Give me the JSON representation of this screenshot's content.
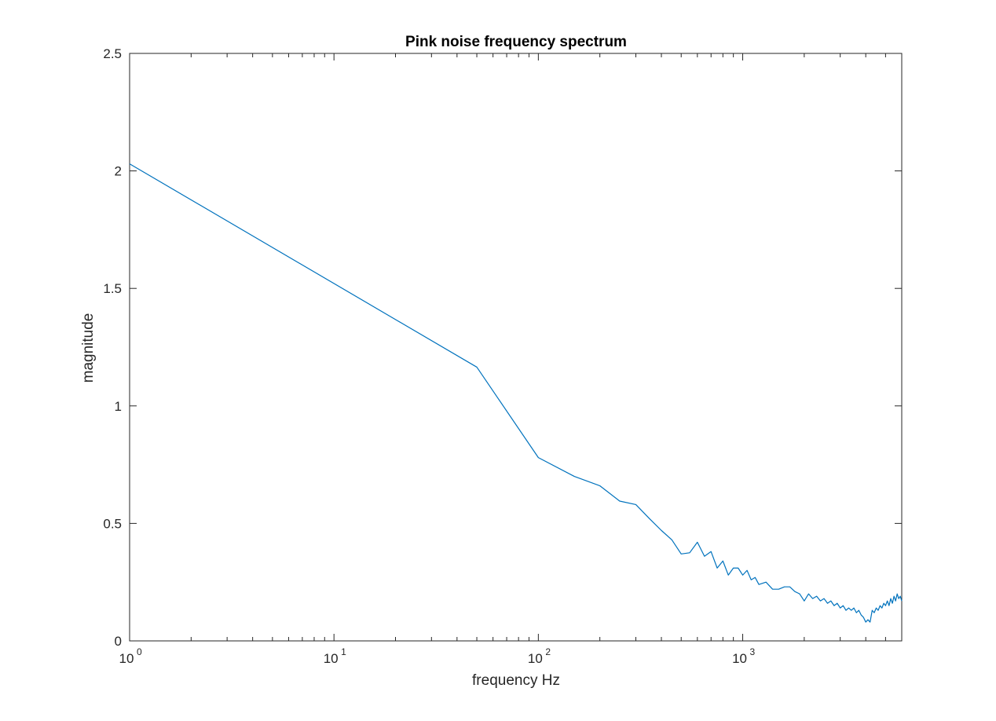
{
  "chart_data": {
    "type": "line",
    "title": "Pink noise frequency spectrum",
    "xlabel": "frequency Hz",
    "ylabel": "magnitude",
    "xscale": "log",
    "xlim": [
      1,
      6000
    ],
    "ylim": [
      0,
      2.5
    ],
    "xticks": [
      {
        "base": "10",
        "exp": "0",
        "value": 1
      },
      {
        "base": "10",
        "exp": "1",
        "value": 10
      },
      {
        "base": "10",
        "exp": "2",
        "value": 100
      },
      {
        "base": "10",
        "exp": "3",
        "value": 1000
      }
    ],
    "yticks": [
      {
        "label": "0",
        "value": 0
      },
      {
        "label": "0.5",
        "value": 0.5
      },
      {
        "label": "1",
        "value": 1
      },
      {
        "label": "1.5",
        "value": 1.5
      },
      {
        "label": "2",
        "value": 2
      },
      {
        "label": "2.5",
        "value": 2.5
      }
    ],
    "grid": false,
    "box": true,
    "series_color": "#0072bd",
    "series": [
      {
        "x": [
          1,
          50,
          100,
          150,
          200,
          250,
          300,
          350,
          400,
          450,
          500,
          550,
          600,
          650,
          700,
          750,
          800,
          850,
          900,
          950,
          1000,
          1050,
          1100,
          1150,
          1200,
          1300,
          1400,
          1500,
          1600,
          1700,
          1800,
          1900,
          2000,
          2100,
          2200,
          2300,
          2400,
          2500,
          2600,
          2700,
          2800,
          2900,
          3000,
          3100,
          3200,
          3300,
          3400,
          3500,
          3600,
          3700,
          3800,
          3900,
          4000,
          4100,
          4200,
          4300,
          4400,
          4500,
          4600,
          4700,
          4800,
          4900,
          5000,
          5100,
          5200,
          5300,
          5400,
          5500,
          5600,
          5700,
          5800,
          5900,
          6000
        ],
        "y": [
          2.03,
          1.165,
          0.78,
          0.7,
          0.66,
          0.595,
          0.58,
          0.52,
          0.47,
          0.43,
          0.37,
          0.375,
          0.42,
          0.36,
          0.38,
          0.31,
          0.34,
          0.28,
          0.31,
          0.31,
          0.28,
          0.3,
          0.26,
          0.27,
          0.24,
          0.25,
          0.22,
          0.22,
          0.23,
          0.23,
          0.21,
          0.2,
          0.17,
          0.2,
          0.18,
          0.19,
          0.17,
          0.18,
          0.16,
          0.17,
          0.15,
          0.16,
          0.14,
          0.15,
          0.13,
          0.14,
          0.13,
          0.14,
          0.12,
          0.13,
          0.11,
          0.1,
          0.08,
          0.09,
          0.08,
          0.13,
          0.12,
          0.14,
          0.13,
          0.15,
          0.14,
          0.16,
          0.15,
          0.17,
          0.15,
          0.18,
          0.16,
          0.19,
          0.17,
          0.2,
          0.18,
          0.19,
          0.17
        ]
      }
    ]
  }
}
